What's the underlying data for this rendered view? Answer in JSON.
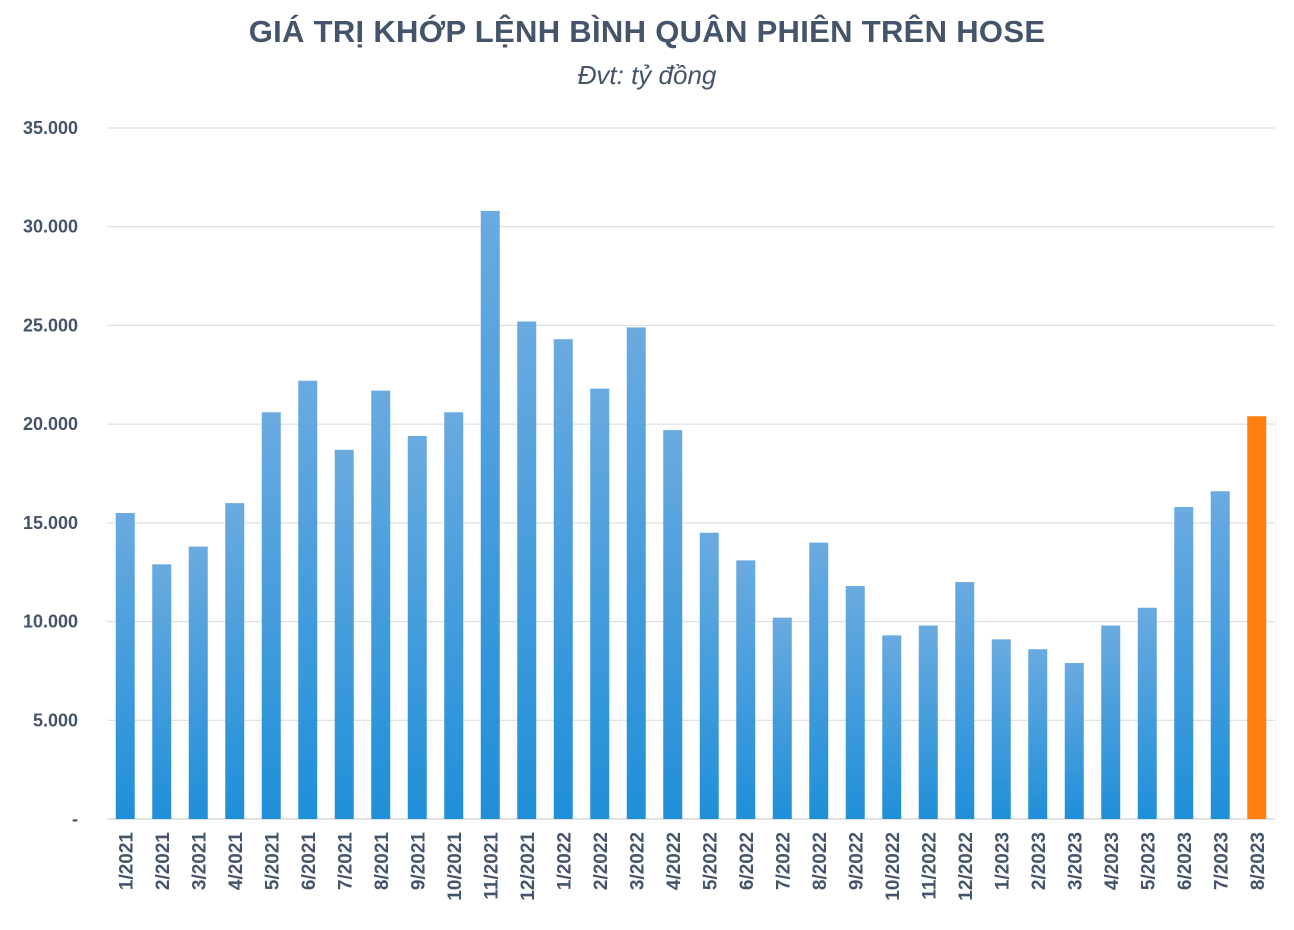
{
  "chart_data": {
    "type": "bar",
    "title": "GIÁ TRỊ KHỚP LỆNH BÌNH QUÂN PHIÊN TRÊN HOSE",
    "subtitle": "Đvt: tỷ đồng",
    "xlabel": "",
    "ylabel": "",
    "ylim": [
      0,
      35000
    ],
    "yticks": [
      {
        "value": 0,
        "label": "-"
      },
      {
        "value": 5000,
        "label": "5.000"
      },
      {
        "value": 10000,
        "label": "10.000"
      },
      {
        "value": 15000,
        "label": "15.000"
      },
      {
        "value": 20000,
        "label": "20.000"
      },
      {
        "value": 25000,
        "label": "25.000"
      },
      {
        "value": 30000,
        "label": "30.000"
      },
      {
        "value": 35000,
        "label": "35.000"
      }
    ],
    "grid": true,
    "categories": [
      "1/2021",
      "2/2021",
      "3/2021",
      "4/2021",
      "5/2021",
      "6/2021",
      "7/2021",
      "8/2021",
      "9/2021",
      "10/2021",
      "11/2021",
      "12/2021",
      "1/2022",
      "2/2022",
      "3/2022",
      "4/2022",
      "5/2022",
      "6/2022",
      "7/2022",
      "8/2022",
      "9/2022",
      "10/2022",
      "11/2022",
      "12/2022",
      "1/2023",
      "2/2023",
      "3/2023",
      "4/2023",
      "5/2023",
      "6/2023",
      "7/2023",
      "8/2023"
    ],
    "values": [
      15500,
      12900,
      13800,
      16000,
      20600,
      22200,
      18700,
      21700,
      19400,
      20600,
      30800,
      25200,
      24300,
      21800,
      24900,
      19700,
      14500,
      13100,
      10200,
      14000,
      11800,
      9300,
      9800,
      12000,
      9100,
      8600,
      7900,
      9800,
      10700,
      15800,
      16600,
      20400
    ],
    "colors": {
      "bar_top": "#6aaae0",
      "bar_bottom": "#1f8fd8",
      "highlight": "#ff7f0e",
      "grid": "#d9d9d9",
      "text": "#44546a"
    },
    "highlight_index": 31
  }
}
